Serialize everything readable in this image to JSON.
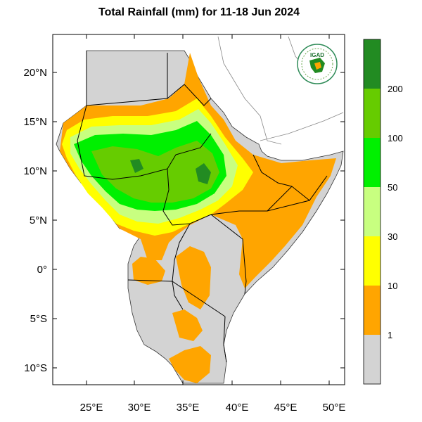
{
  "title": "Total Rainfall (mm) for 11-18 Jun 2024",
  "map": {
    "lat_ticks": [
      "20°N",
      "15°N",
      "10°N",
      "5°N",
      "0°",
      "5°S",
      "10°S"
    ],
    "lon_ticks": [
      "25°E",
      "30°E",
      "35°E",
      "40°E",
      "45°E",
      "50°E"
    ],
    "logo_text": "IGAD"
  },
  "colorbar": {
    "labels": [
      "200",
      "100",
      "50",
      "30",
      "10",
      "1"
    ],
    "bins": [
      {
        "range": "<1",
        "color": "#d3d3d3"
      },
      {
        "range": "1-10",
        "color": "#ffa500"
      },
      {
        "range": "10-30",
        "color": "#ffff00"
      },
      {
        "range": "30-50",
        "color": "#c8ff80"
      },
      {
        "range": "50-100",
        "color": "#00f000"
      },
      {
        "range": "100-200",
        "color": "#66cc00"
      },
      {
        "range": ">200",
        "color": "#228b22"
      }
    ]
  }
}
